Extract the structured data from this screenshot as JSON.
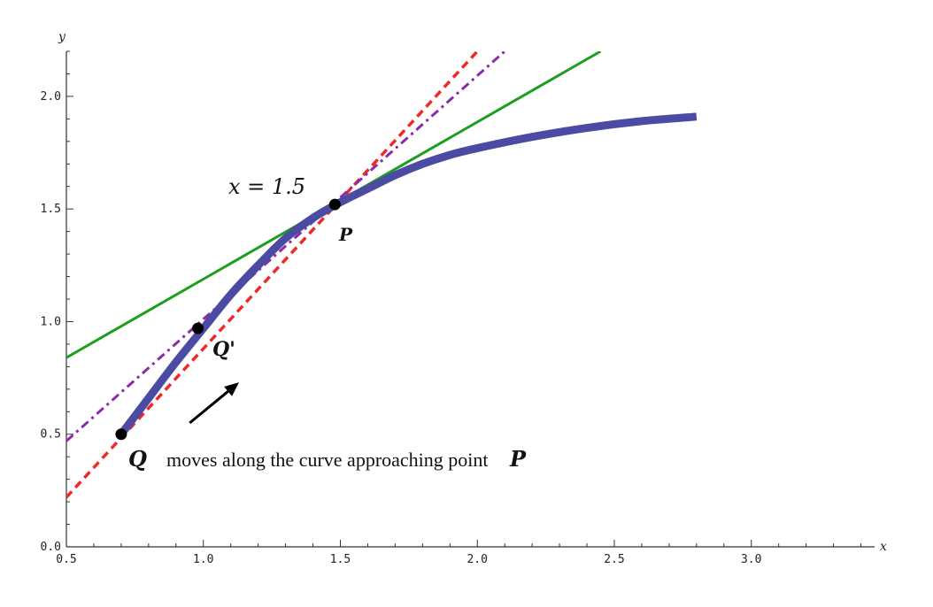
{
  "chart_data": {
    "type": "line",
    "title": "",
    "xlabel": "x",
    "ylabel": "y",
    "xlim": [
      0.5,
      3.45
    ],
    "ylim": [
      0.0,
      2.2
    ],
    "x_ticks": [
      0.5,
      1.0,
      1.5,
      2.0,
      2.5,
      3.0
    ],
    "x_tick_labels": [
      "0.5",
      "1.0",
      "1.5",
      "2.0",
      "2.5",
      "3.0"
    ],
    "y_ticks": [
      0.0,
      0.5,
      1.0,
      1.5,
      2.0
    ],
    "y_tick_labels": [
      "0.0",
      "0.5",
      "1.0",
      "1.5",
      "2.0"
    ],
    "series": [
      {
        "name": "curve",
        "style": "thick-solid",
        "color": "#4B4BA3",
        "x": [
          0.7,
          0.8,
          0.9,
          1.0,
          1.1,
          1.2,
          1.3,
          1.4,
          1.5,
          1.6,
          1.7,
          1.8,
          1.9,
          2.0,
          2.2,
          2.4,
          2.6,
          2.8
        ],
        "y": [
          0.5,
          0.66,
          0.82,
          0.97,
          1.12,
          1.25,
          1.37,
          1.46,
          1.53,
          1.59,
          1.65,
          1.7,
          1.74,
          1.77,
          1.82,
          1.86,
          1.89,
          1.91
        ]
      },
      {
        "name": "tangent at P",
        "style": "solid",
        "color": "#1E9E1E",
        "x": [
          0.5,
          2.45
        ],
        "y": [
          0.84,
          2.2
        ]
      },
      {
        "name": "secant QP",
        "style": "dashed",
        "color": "#F02828",
        "x": [
          0.5,
          2.0
        ],
        "y": [
          0.22,
          2.2
        ]
      },
      {
        "name": "secant Q'P",
        "style": "dash-dot",
        "color": "#8B2BA8",
        "x": [
          0.5,
          2.1
        ],
        "y": [
          0.47,
          2.2
        ]
      }
    ],
    "points": [
      {
        "name": "Q",
        "x": 0.7,
        "y": 0.5,
        "color": "#000000"
      },
      {
        "name": "Q'",
        "x": 0.98,
        "y": 0.97,
        "color": "#000000"
      },
      {
        "name": "P",
        "x": 1.48,
        "y": 1.52,
        "color": "#000000"
      }
    ],
    "annotations": {
      "x_value": "x = 1.5",
      "label_p": "P",
      "label_q": "Q",
      "label_q_prime": "Q'",
      "caption_text": "moves along the curve approaching point",
      "caption_p": "P"
    },
    "arrow": {
      "from": [
        0.95,
        0.55
      ],
      "to": [
        1.13,
        0.73
      ]
    }
  }
}
